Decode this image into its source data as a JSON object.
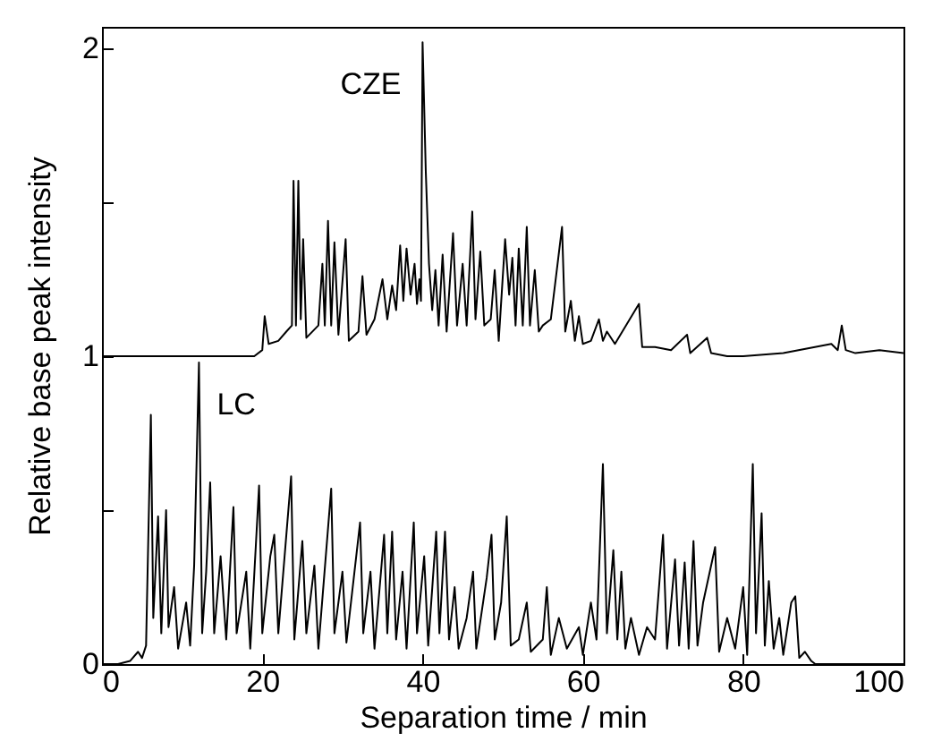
{
  "chart_data": {
    "type": "line",
    "xlabel": "Separation time / min",
    "ylabel": "Relative base peak intensity",
    "xlim": [
      0,
      100
    ],
    "ylim": [
      0,
      2.07
    ],
    "xticks": [
      0,
      20,
      40,
      60,
      80,
      100
    ],
    "yticks": [
      0,
      {
        "value": 0.5,
        "label": null
      },
      1,
      {
        "value": 1.5,
        "label": null
      },
      2
    ],
    "grid": false,
    "series": [
      {
        "name": "CZE",
        "color": "#000000",
        "x": [
          0,
          19,
          20,
          20.3,
          20.8,
          22,
          23,
          23.7,
          23.9,
          24.2,
          24.5,
          24.8,
          25.1,
          25.5,
          27,
          27.5,
          27.8,
          28.2,
          28.6,
          29,
          29.5,
          30.4,
          30.8,
          32,
          32.5,
          33,
          34,
          35,
          35.6,
          36.2,
          36.7,
          37.2,
          37.6,
          38,
          38.5,
          39,
          39.3,
          39.6,
          39.8,
          40,
          40.4,
          40.8,
          41.2,
          41.6,
          42,
          42.5,
          43,
          43.8,
          44.3,
          45,
          45.5,
          46.2,
          46.6,
          47.2,
          47.7,
          48.5,
          49,
          49.5,
          50.3,
          50.8,
          51.2,
          51.6,
          52,
          52.5,
          53,
          53.4,
          54,
          54.5,
          55,
          56,
          57.4,
          57.8,
          58.5,
          59,
          59.5,
          60,
          61,
          62,
          62.5,
          63,
          64,
          67,
          67.4,
          69,
          71,
          73,
          73.4,
          75.5,
          76,
          78,
          80,
          85,
          91,
          91.8,
          92.3,
          92.8,
          94,
          97,
          100
        ],
        "values": [
          1,
          1,
          1.02,
          1.13,
          1.04,
          1.05,
          1.08,
          1.1,
          1.57,
          1.1,
          1.57,
          1.12,
          1.38,
          1.06,
          1.1,
          1.3,
          1.1,
          1.44,
          1.1,
          1.37,
          1.07,
          1.38,
          1.05,
          1.08,
          1.26,
          1.07,
          1.12,
          1.25,
          1.12,
          1.23,
          1.15,
          1.36,
          1.18,
          1.35,
          1.2,
          1.3,
          1.17,
          1.25,
          1.18,
          2.02,
          1.6,
          1.3,
          1.15,
          1.28,
          1.1,
          1.33,
          1.08,
          1.4,
          1.1,
          1.3,
          1.1,
          1.47,
          1.12,
          1.34,
          1.1,
          1.12,
          1.28,
          1.05,
          1.38,
          1.2,
          1.32,
          1.1,
          1.35,
          1.1,
          1.42,
          1.1,
          1.28,
          1.08,
          1.1,
          1.12,
          1.42,
          1.08,
          1.18,
          1.05,
          1.13,
          1.04,
          1.05,
          1.12,
          1.05,
          1.08,
          1.04,
          1.17,
          1.03,
          1.03,
          1.02,
          1.07,
          1.01,
          1.06,
          1.01,
          1,
          1,
          1.01,
          1.04,
          1.02,
          1.1,
          1.02,
          1.01,
          1.02,
          1.01
        ]
      },
      {
        "name": "LC",
        "color": "#000000",
        "x": [
          0,
          2,
          3.5,
          4.5,
          5,
          5.5,
          6.1,
          6.4,
          7,
          7.4,
          8,
          8.3,
          9,
          9.5,
          10.5,
          11,
          11.5,
          12.1,
          12.5,
          13,
          13.5,
          14,
          14.8,
          15.5,
          16.4,
          16.8,
          18,
          18.5,
          19.6,
          20,
          21,
          21.5,
          22,
          23.6,
          24,
          25,
          25.5,
          26.5,
          27,
          28.6,
          29,
          30,
          30.5,
          32.2,
          32.6,
          33.5,
          34,
          35.2,
          35.6,
          36.2,
          36.7,
          37.5,
          38,
          38.9,
          39.3,
          40.2,
          40.7,
          41.7,
          42.1,
          42.8,
          43.3,
          44,
          44.5,
          45.5,
          46.3,
          46.7,
          48,
          48.6,
          49,
          49.8,
          50.5,
          51,
          52,
          53,
          53.5,
          55,
          55.5,
          56,
          57,
          58,
          59.5,
          60,
          61,
          61.7,
          62.5,
          63,
          63.8,
          64.3,
          64.8,
          65.3,
          66,
          67,
          68,
          69,
          70,
          70.5,
          71.5,
          72,
          72.7,
          73.2,
          73.8,
          74.3,
          75,
          76.5,
          77,
          78,
          79,
          80,
          80.5,
          81.2,
          81.6,
          82.3,
          82.7,
          83.2,
          83.8,
          84.5,
          85,
          86,
          86.5,
          87,
          87.7,
          88.5,
          89,
          100
        ],
        "values": [
          0,
          0,
          0.01,
          0.04,
          0.02,
          0.06,
          0.81,
          0.15,
          0.48,
          0.1,
          0.5,
          0.12,
          0.25,
          0.05,
          0.2,
          0.06,
          0.32,
          0.98,
          0.1,
          0.3,
          0.59,
          0.1,
          0.35,
          0.08,
          0.51,
          0.1,
          0.3,
          0.05,
          0.58,
          0.1,
          0.35,
          0.42,
          0.1,
          0.61,
          0.08,
          0.4,
          0.1,
          0.32,
          0.05,
          0.57,
          0.1,
          0.3,
          0.07,
          0.46,
          0.1,
          0.3,
          0.05,
          0.42,
          0.1,
          0.43,
          0.08,
          0.3,
          0.05,
          0.46,
          0.1,
          0.35,
          0.06,
          0.43,
          0.1,
          0.43,
          0.08,
          0.25,
          0.05,
          0.15,
          0.3,
          0.05,
          0.28,
          0.42,
          0.08,
          0.2,
          0.48,
          0.06,
          0.08,
          0.2,
          0.04,
          0.08,
          0.25,
          0.03,
          0.15,
          0.05,
          0.12,
          0.03,
          0.2,
          0.08,
          0.65,
          0.1,
          0.37,
          0.08,
          0.3,
          0.05,
          0.15,
          0.03,
          0.12,
          0.08,
          0.42,
          0.05,
          0.34,
          0.06,
          0.33,
          0.05,
          0.4,
          0.06,
          0.2,
          0.38,
          0.04,
          0.15,
          0.05,
          0.25,
          0.03,
          0.65,
          0.1,
          0.49,
          0.06,
          0.27,
          0.05,
          0.15,
          0.03,
          0.2,
          0.22,
          0.02,
          0.04,
          0.01,
          0,
          0
        ]
      }
    ]
  }
}
